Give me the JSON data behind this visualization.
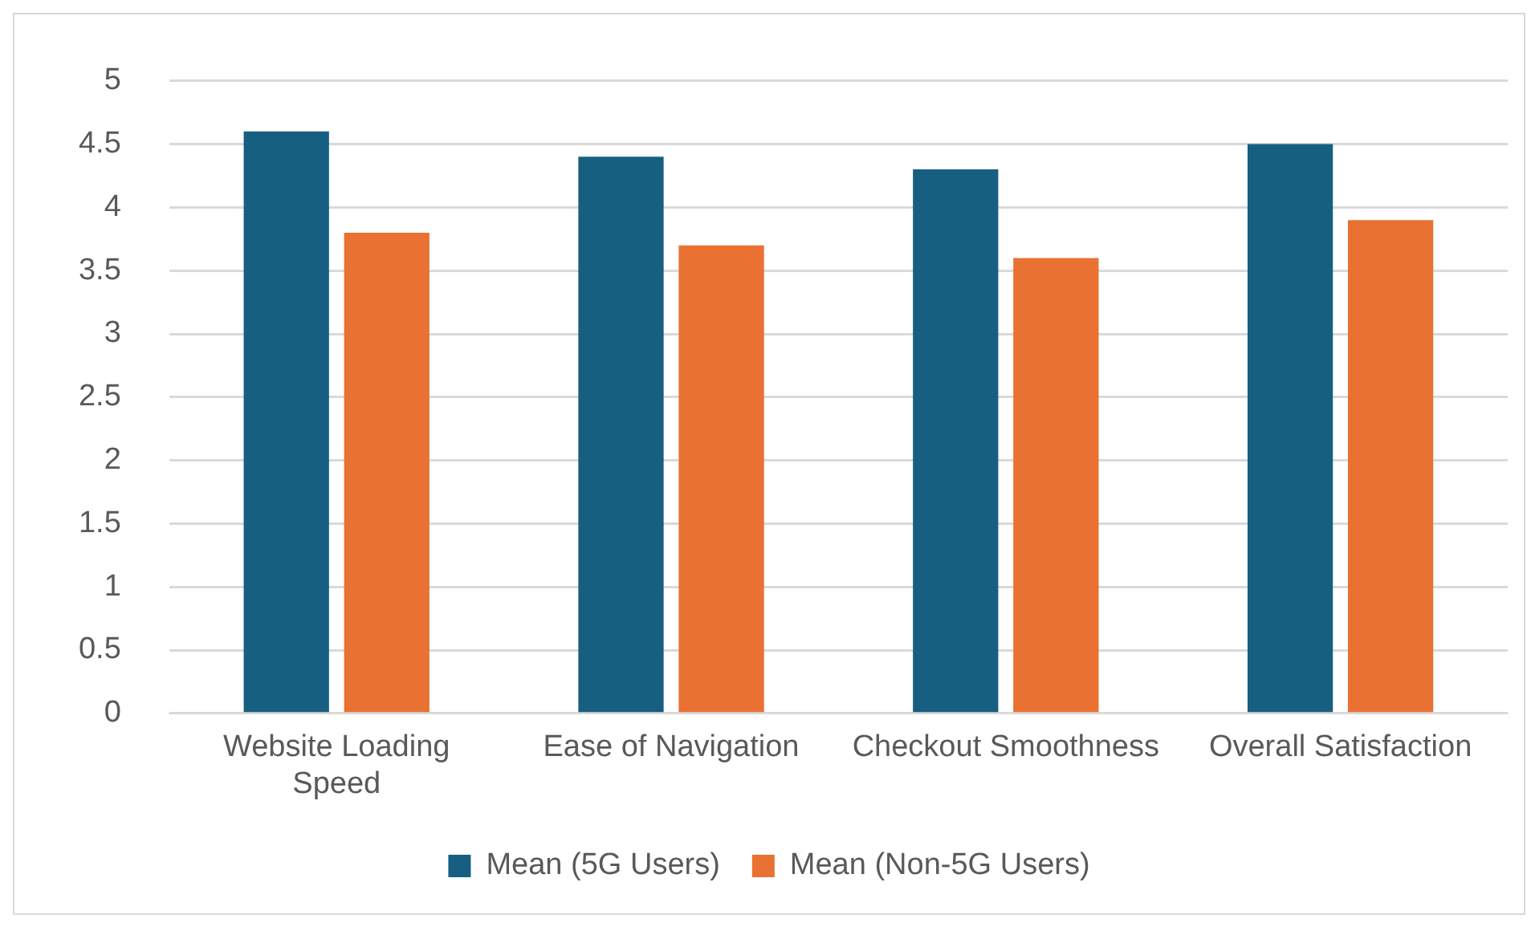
{
  "chart_data": {
    "type": "bar",
    "categories": [
      "Website Loading Speed",
      "Ease of Navigation",
      "Checkout Smoothness",
      "Overall Satisfaction"
    ],
    "series": [
      {
        "name": "Mean (5G Users)",
        "color": "#175f80",
        "values": [
          4.6,
          4.4,
          4.3,
          4.5
        ]
      },
      {
        "name": "Mean (Non-5G Users)",
        "color": "#e97132",
        "values": [
          3.8,
          3.7,
          3.6,
          3.9
        ]
      }
    ],
    "ylim": [
      0,
      5
    ],
    "yticks": [
      0,
      0.5,
      1,
      1.5,
      2,
      2.5,
      3,
      3.5,
      4,
      4.5,
      5
    ],
    "grid": "y",
    "legend": "bottom"
  }
}
